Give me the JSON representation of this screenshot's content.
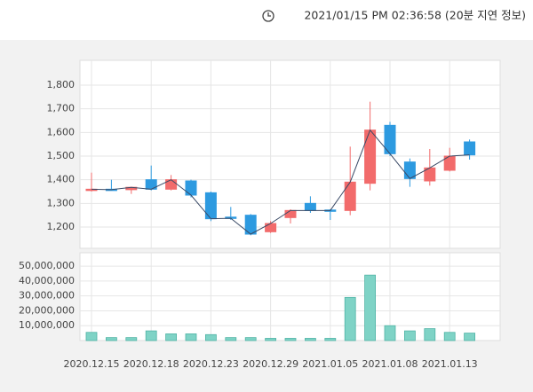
{
  "header": {
    "timestamp": "2021/01/15 PM 02:36:58 (20분 지연 정보)"
  },
  "chart_data": {
    "type": "candlestick",
    "categories": [
      "2020.12.15",
      null,
      null,
      "2020.12.18",
      null,
      null,
      "2020.12.23",
      null,
      null,
      "2020.12.29",
      null,
      null,
      "2021.01.05",
      null,
      null,
      "2021.01.08",
      null,
      null,
      "2021.01.13",
      null
    ],
    "open": [
      1355,
      1360,
      1358,
      1400,
      1360,
      1395,
      1345,
      1242,
      1250,
      1180,
      1240,
      1300,
      1272,
      1270,
      1385,
      1630,
      1475,
      1395,
      1440,
      1560
    ],
    "high": [
      1430,
      1400,
      1370,
      1460,
      1420,
      1400,
      1350,
      1285,
      1255,
      1225,
      1275,
      1330,
      1275,
      1540,
      1730,
      1645,
      1490,
      1530,
      1535,
      1570
    ],
    "low": [
      1350,
      1355,
      1340,
      1355,
      1355,
      1325,
      1225,
      1230,
      1165,
      1175,
      1215,
      1260,
      1230,
      1250,
      1355,
      1500,
      1370,
      1375,
      1435,
      1485
    ],
    "close": [
      1360,
      1358,
      1368,
      1360,
      1400,
      1335,
      1235,
      1237,
      1170,
      1215,
      1270,
      1270,
      1270,
      1390,
      1610,
      1510,
      1405,
      1450,
      1500,
      1505
    ],
    "ylim": [
      1110,
      1905
    ],
    "yticks": [
      {
        "value": 1200,
        "label": "1,200"
      },
      {
        "value": 1300,
        "label": "1,300"
      },
      {
        "value": 1400,
        "label": "1,400"
      },
      {
        "value": 1500,
        "label": "1,500"
      },
      {
        "value": 1600,
        "label": "1,600"
      },
      {
        "value": 1700,
        "label": "1,700"
      },
      {
        "value": 1800,
        "label": "1,800"
      }
    ],
    "up_color": "#f26b6b",
    "down_color": "#2d9ae0",
    "line_color": "#3a4a66",
    "grid": true,
    "volume": {
      "values": [
        5500000,
        2000000,
        2000000,
        6500000,
        4500000,
        4500000,
        4000000,
        2000000,
        2000000,
        1500000,
        1500000,
        1500000,
        1500000,
        29000000,
        44000000,
        10000000,
        6500000,
        8000000,
        5500000,
        5000000
      ],
      "ylim": [
        0,
        59000000
      ],
      "yticks": [
        {
          "value": 10000000,
          "label": "10,000,000"
        },
        {
          "value": 20000000,
          "label": "20,000,000"
        },
        {
          "value": 30000000,
          "label": "30,000,000"
        },
        {
          "value": 40000000,
          "label": "40,000,000"
        },
        {
          "value": 50000000,
          "label": "50,000,000"
        }
      ],
      "color": "#7fd3c6"
    }
  }
}
